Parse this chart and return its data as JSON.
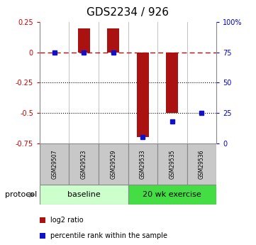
{
  "title": "GDS2234 / 926",
  "samples": [
    "GSM29507",
    "GSM29523",
    "GSM29529",
    "GSM29533",
    "GSM29535",
    "GSM29536"
  ],
  "log2_ratio": [
    0.0,
    0.2,
    0.2,
    -0.7,
    -0.5,
    0.0
  ],
  "percentile_rank_pct": [
    75,
    75,
    75,
    5,
    18,
    25
  ],
  "ylim_left": [
    -0.75,
    0.25
  ],
  "ylim_right": [
    0,
    100
  ],
  "yticks_left": [
    0.25,
    0,
    -0.25,
    -0.5,
    -0.75
  ],
  "yticks_right": [
    100,
    75,
    50,
    25,
    0
  ],
  "hlines": [
    -0.25,
    -0.5
  ],
  "dashed_hline": 0,
  "bar_color": "#aa1111",
  "dot_color": "#1111cc",
  "protocol_groups": [
    {
      "label": "baseline",
      "start": 0,
      "end": 3,
      "color": "#ccffcc"
    },
    {
      "label": "20 wk exercise",
      "start": 3,
      "end": 6,
      "color": "#44dd44"
    }
  ],
  "legend_items": [
    {
      "label": "log2 ratio",
      "color": "#aa1111"
    },
    {
      "label": "percentile rank within the sample",
      "color": "#1111cc"
    }
  ],
  "bar_width": 0.4,
  "sample_box_color": "#c8c8c8",
  "left_tick_color": "#cc0000",
  "right_tick_color": "#0000cc",
  "title_fontsize": 11,
  "tick_fontsize": 7,
  "protocol_label": "protocol",
  "protocol_arrow_color": "#888888"
}
